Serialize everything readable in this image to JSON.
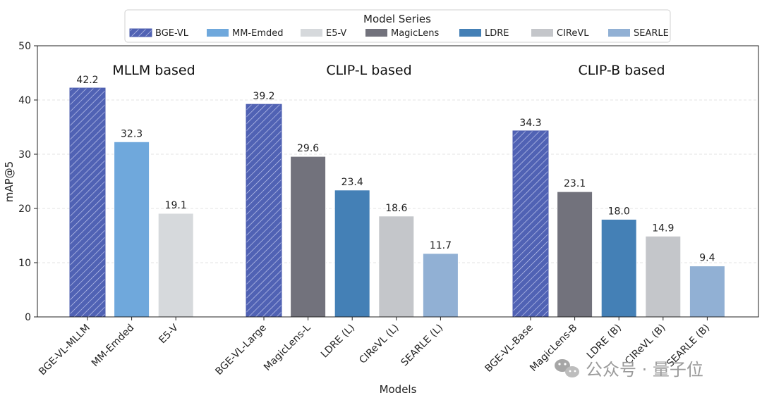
{
  "chart_data": {
    "type": "bar",
    "ylabel": "mAP@5",
    "xlabel": "Models",
    "ylim": [
      0,
      50
    ],
    "yticks": [
      0,
      10,
      20,
      30,
      40,
      50
    ],
    "grid": true,
    "legend": {
      "title": "Model Series",
      "placement": "top-center",
      "entries": [
        {
          "name": "BGE-VL",
          "color": "#5062b4",
          "hatch": true
        },
        {
          "name": "MM-Emded",
          "color": "#6fa8dc",
          "hatch": false
        },
        {
          "name": "E5-V",
          "color": "#d6d9dc",
          "hatch": false
        },
        {
          "name": "MagicLens",
          "color": "#72727c",
          "hatch": false
        },
        {
          "name": "LDRE",
          "color": "#4480b6",
          "hatch": false
        },
        {
          "name": "CIReVL",
          "color": "#c4c6ca",
          "hatch": false
        },
        {
          "name": "SEARLE",
          "color": "#91b0d4",
          "hatch": false
        }
      ]
    },
    "groups": [
      {
        "label": "MLLM based",
        "bars": [
          {
            "name": "BGE-VL-MLLM",
            "value": 42.2,
            "value_label": "42.2",
            "series": "BGE-VL"
          },
          {
            "name": "MM-Emded",
            "value": 32.3,
            "value_label": "32.3",
            "series": "MM-Emded"
          },
          {
            "name": "E5-V",
            "value": 19.1,
            "value_label": "19.1",
            "series": "E5-V"
          }
        ]
      },
      {
        "label": "CLIP-L based",
        "bars": [
          {
            "name": "BGE-VL-Large",
            "value": 39.2,
            "value_label": "39.2",
            "series": "BGE-VL"
          },
          {
            "name": "MagicLens-L",
            "value": 29.6,
            "value_label": "29.6",
            "series": "MagicLens"
          },
          {
            "name": "LDRE (L)",
            "value": 23.4,
            "value_label": "23.4",
            "series": "LDRE"
          },
          {
            "name": "CIReVL (L)",
            "value": 18.6,
            "value_label": "18.6",
            "series": "CIReVL"
          },
          {
            "name": "SEARLE (L)",
            "value": 11.7,
            "value_label": "11.7",
            "series": "SEARLE"
          }
        ]
      },
      {
        "label": "CLIP-B based",
        "bars": [
          {
            "name": "BGE-VL-Base",
            "value": 34.3,
            "value_label": "34.3",
            "series": "BGE-VL"
          },
          {
            "name": "MagicLens-B",
            "value": 23.1,
            "value_label": "23.1",
            "series": "MagicLens"
          },
          {
            "name": "LDRE (B)",
            "value": 18.0,
            "value_label": "18.0",
            "series": "LDRE"
          },
          {
            "name": "CIReVL (B)",
            "value": 14.9,
            "value_label": "14.9",
            "series": "CIReVL"
          },
          {
            "name": "SEARLE (B)",
            "value": 9.4,
            "value_label": "9.4",
            "series": "SEARLE"
          }
        ]
      }
    ]
  },
  "watermark": {
    "text": "公众号 · 量子位",
    "icon": "wechat-icon"
  }
}
